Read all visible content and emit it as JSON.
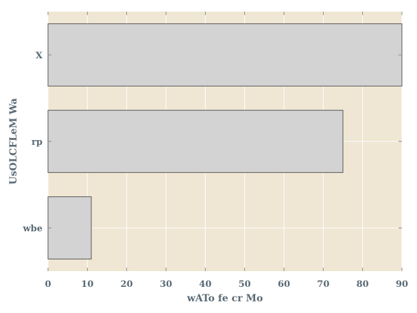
{
  "chart_data": {
    "type": "bar",
    "orientation": "horizontal",
    "categories": [
      "X",
      "rp",
      "wbe"
    ],
    "values": [
      90,
      75,
      11
    ],
    "xlabel": "wATo  fe cr Mo",
    "ylabel": "UsOLCFLeM Wa",
    "xlim": [
      0,
      90
    ],
    "xticks": [
      0,
      10,
      20,
      30,
      40,
      50,
      60,
      70,
      80,
      90
    ],
    "grid": true,
    "colors": {
      "plot_background": "#efe6d3",
      "bar_fill": "#d3d3d3",
      "bar_edge": "#555555",
      "grid": "#ffffff",
      "text": "#5a6a75"
    }
  }
}
